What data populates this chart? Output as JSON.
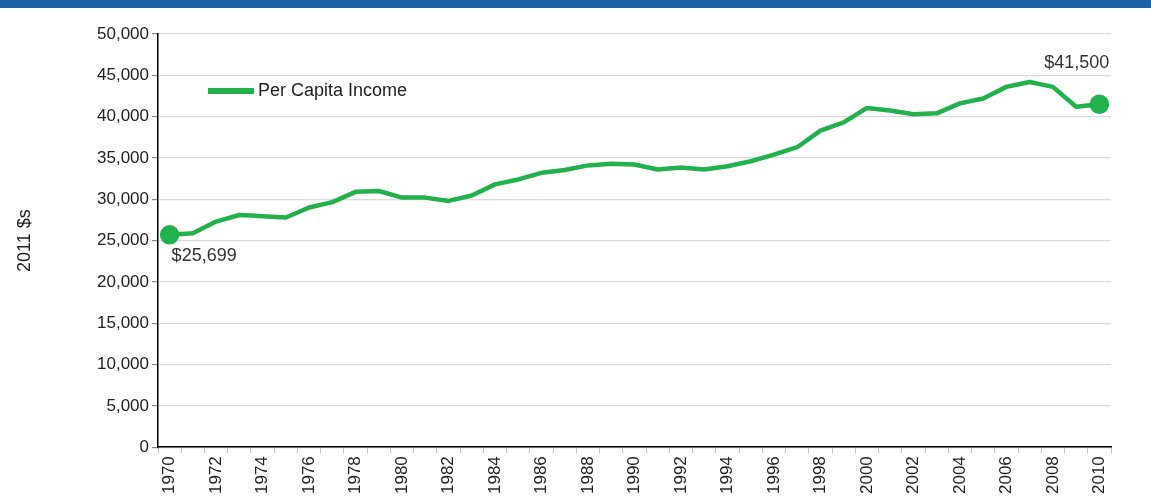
{
  "chart_data": {
    "type": "line",
    "ylabel": "2011 $s",
    "categories": [
      "1970",
      null,
      "1972",
      null,
      "1974",
      null,
      "1976",
      null,
      "1978",
      null,
      "1980",
      null,
      "1982",
      null,
      "1984",
      null,
      "1986",
      null,
      "1988",
      null,
      "1990",
      null,
      "1992",
      null,
      "1994",
      null,
      "1996",
      null,
      "1998",
      null,
      "2000",
      null,
      "2002",
      null,
      "2004",
      null,
      "2006",
      null,
      "2008",
      null,
      "2010"
    ],
    "series": [
      {
        "name": "Per Capita Income",
        "color": "#22b14c",
        "values": [
          25699,
          25900,
          27300,
          28100,
          27950,
          27800,
          29000,
          29650,
          30900,
          31000,
          30200,
          30200,
          29800,
          30450,
          31800,
          32400,
          33200,
          33550,
          34100,
          34300,
          34200,
          33600,
          33850,
          33600,
          34000,
          34600,
          35400,
          36300,
          38300,
          39300,
          41050,
          40750,
          40300,
          40400,
          41600,
          42200,
          43600,
          44200,
          43600,
          41200,
          41500
        ],
        "value_labels": [
          "$25,699",
          null,
          null,
          null,
          null,
          null,
          null,
          null,
          null,
          null,
          null,
          null,
          null,
          null,
          null,
          null,
          null,
          null,
          null,
          null,
          null,
          null,
          null,
          null,
          null,
          null,
          null,
          null,
          null,
          null,
          null,
          null,
          null,
          null,
          null,
          null,
          null,
          null,
          null,
          null,
          "$41,500"
        ]
      }
    ],
    "ylim": [
      0,
      50000
    ],
    "yticks": [
      0,
      {
        "value": 5000,
        "label": "5,000"
      },
      {
        "value": 10000,
        "label": "10,000"
      },
      {
        "value": 15000,
        "label": "15,000"
      },
      {
        "value": 20000,
        "label": "20,000"
      },
      {
        "value": 25000,
        "label": "25,000"
      },
      {
        "value": 30000,
        "label": "30,000"
      },
      {
        "value": 35000,
        "label": "35,000"
      },
      {
        "value": 40000,
        "label": "40,000"
      },
      {
        "value": 45000,
        "label": "45,000"
      },
      {
        "value": 50000,
        "label": "50,000"
      }
    ],
    "grid": "y",
    "legend": "top left",
    "line_style": "solid"
  }
}
